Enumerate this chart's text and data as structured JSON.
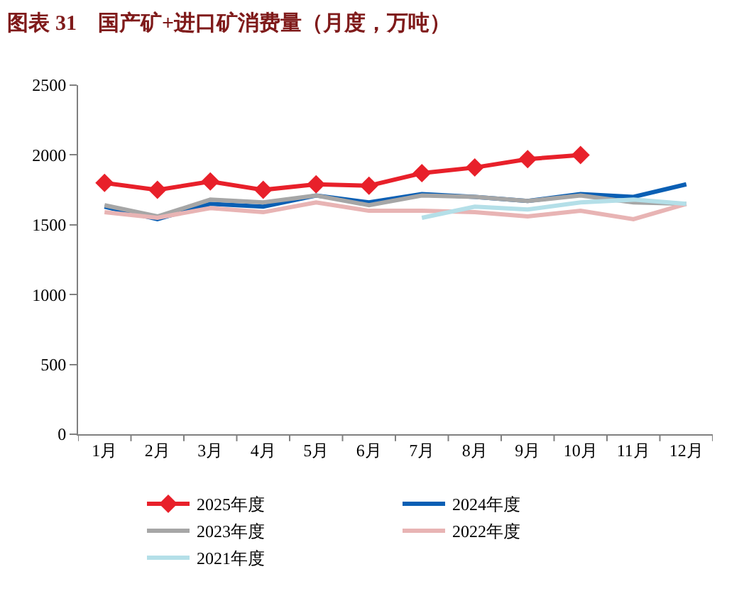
{
  "chart_data": {
    "type": "line",
    "title": "图表 31　国产矿+进口矿消费量（月度，万吨）",
    "categories": [
      "1月",
      "2月",
      "3月",
      "4月",
      "5月",
      "6月",
      "7月",
      "8月",
      "9月",
      "10月",
      "11月",
      "12月"
    ],
    "series": [
      {
        "name": "2025年度",
        "color": "#e8202a",
        "marker": "diamond",
        "values": [
          1800,
          1750,
          1810,
          1750,
          1790,
          1780,
          1870,
          1910,
          1970,
          2000,
          null,
          null
        ]
      },
      {
        "name": "2024年度",
        "color": "#0a5fb4",
        "values": [
          1630,
          1540,
          1650,
          1630,
          1710,
          1660,
          1720,
          1700,
          1670,
          1720,
          1700,
          1790
        ]
      },
      {
        "name": "2023年度",
        "color": "#a6a6a6",
        "values": [
          1640,
          1560,
          1680,
          1660,
          1710,
          1640,
          1710,
          1700,
          1670,
          1710,
          1660,
          1650
        ]
      },
      {
        "name": "2022年度",
        "color": "#e8b4b4",
        "values": [
          1590,
          1550,
          1620,
          1590,
          1660,
          1600,
          1600,
          1590,
          1560,
          1600,
          1540,
          1650
        ]
      },
      {
        "name": "2021年度",
        "color": "#b4dfe8",
        "values": [
          null,
          null,
          null,
          null,
          null,
          null,
          1550,
          1630,
          1610,
          1660,
          1680,
          1650
        ]
      }
    ],
    "ylim": [
      0,
      2500
    ],
    "yticks": [
      0,
      500,
      1000,
      1500,
      2000,
      2500
    ],
    "legend": "bottom",
    "line_style": "solid"
  }
}
